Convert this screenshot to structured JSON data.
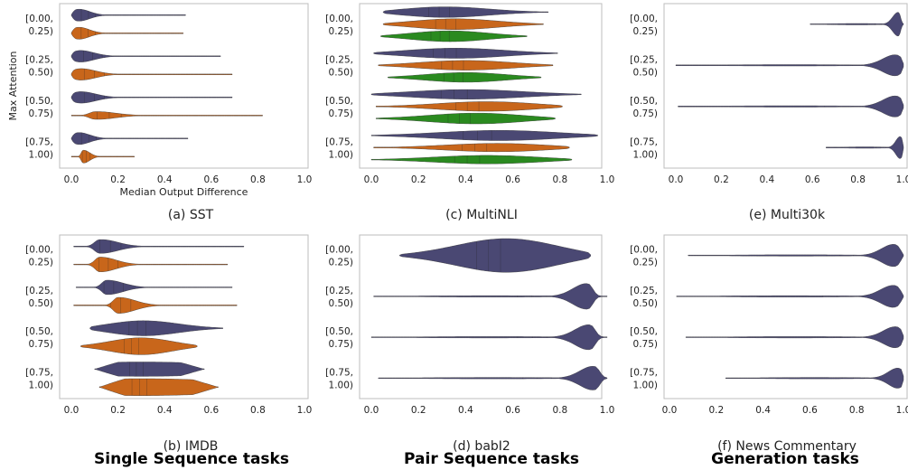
{
  "colors": {
    "series1": "#4a4873",
    "series2": "#c8661b",
    "series3": "#2a8a1f",
    "frame": "#bdbdbd"
  },
  "group_labels": [
    "Single Sequence tasks",
    "Pair Sequence tasks",
    "Generation tasks"
  ],
  "chart_data": [
    {
      "id": "sst",
      "type": "violin",
      "caption": "(a) SST",
      "ylabel": "Max Attention",
      "xlabel": "Median Output Difference",
      "categories": [
        "[0.00,\n0.25)",
        "[0.25,\n0.50)",
        "[0.50,\n0.75)",
        "[0.75,\n1.00)"
      ],
      "xlim": [
        0,
        1
      ],
      "xticks": [
        "0.0",
        "0.2",
        "0.4",
        "0.6",
        "0.8",
        "1.0"
      ],
      "series": [
        {
          "color_key": "series1",
          "violins": [
            {
              "min": 0.0,
              "max": 0.49,
              "peak": 0.02,
              "width": 1.0,
              "skew": "right"
            },
            {
              "min": 0.0,
              "max": 0.64,
              "peak": 0.02,
              "width": 1.0,
              "skew": "right"
            },
            {
              "min": 0.0,
              "max": 0.69,
              "peak": 0.02,
              "width": 1.0,
              "skew": "right"
            },
            {
              "min": 0.0,
              "max": 0.5,
              "peak": 0.02,
              "width": 1.0,
              "skew": "right"
            }
          ]
        },
        {
          "color_key": "series2",
          "violins": [
            {
              "min": 0.0,
              "max": 0.48,
              "peak": 0.02,
              "width": 1.0,
              "skew": "right"
            },
            {
              "min": 0.0,
              "max": 0.69,
              "peak": 0.02,
              "width": 1.0,
              "skew": "right"
            },
            {
              "min": 0.0,
              "max": 0.82,
              "peak": 0.1,
              "width": 0.55,
              "skew": "right"
            },
            {
              "min": 0.0,
              "max": 0.27,
              "peak": 0.05,
              "width": 0.85,
              "skew": "right"
            }
          ]
        }
      ]
    },
    {
      "id": "multinli",
      "type": "violin",
      "caption": "(c) MultiNLI",
      "categories": [
        "[0.00,\n0.25)",
        "[0.25,\n0.50)",
        "[0.50,\n0.75)",
        "[0.75,\n1.00)"
      ],
      "xlim": [
        0,
        1
      ],
      "xticks": [
        "0.0",
        "0.2",
        "0.4",
        "0.6",
        "0.8",
        "1.0"
      ],
      "series": [
        {
          "color_key": "series1",
          "violins": [
            {
              "min": 0.05,
              "max": 0.75,
              "peak": 0.3,
              "width": 0.95,
              "skew": "sym"
            },
            {
              "min": 0.01,
              "max": 0.79,
              "peak": 0.35,
              "width": 0.9,
              "skew": "sym"
            },
            {
              "min": 0.0,
              "max": 0.89,
              "peak": 0.4,
              "width": 0.85,
              "skew": "sym"
            },
            {
              "min": 0.0,
              "max": 0.96,
              "peak": 0.55,
              "width": 0.9,
              "skew": "sym"
            }
          ]
        },
        {
          "color_key": "series2",
          "violins": [
            {
              "min": 0.05,
              "max": 0.73,
              "peak": 0.35,
              "width": 0.95,
              "skew": "sym"
            },
            {
              "min": 0.03,
              "max": 0.77,
              "peak": 0.4,
              "width": 0.85,
              "skew": "sym"
            },
            {
              "min": 0.02,
              "max": 0.81,
              "peak": 0.5,
              "width": 0.85,
              "skew": "sym"
            },
            {
              "min": 0.01,
              "max": 0.84,
              "peak": 0.55,
              "width": 0.75,
              "skew": "sym"
            }
          ]
        },
        {
          "color_key": "series3",
          "violins": [
            {
              "min": 0.04,
              "max": 0.66,
              "peak": 0.33,
              "width": 0.95,
              "skew": "sym"
            },
            {
              "min": 0.07,
              "max": 0.72,
              "peak": 0.4,
              "width": 0.85,
              "skew": "sym"
            },
            {
              "min": 0.02,
              "max": 0.78,
              "peak": 0.45,
              "width": 0.95,
              "skew": "sym"
            },
            {
              "min": 0.0,
              "max": 0.85,
              "peak": 0.5,
              "width": 0.75,
              "skew": "sym"
            }
          ]
        }
      ]
    },
    {
      "id": "multi30k",
      "type": "violin",
      "caption": "(e) Multi30k",
      "categories": [
        "[0.00,\n0.25)",
        "[0.25,\n0.50)",
        "[0.50,\n0.75)",
        "[0.75,\n1.00)"
      ],
      "xlim": [
        0,
        1
      ],
      "xticks": [
        "0.0",
        "0.2",
        "0.4",
        "0.6",
        "0.8",
        "1.0"
      ],
      "series": [
        {
          "color_key": "series1",
          "violins": [
            {
              "min": 0.59,
              "max": 1.0,
              "peak": 0.98,
              "width": 1.0,
              "skew": "left"
            },
            {
              "min": 0.0,
              "max": 1.0,
              "peak": 0.98,
              "width": 1.0,
              "skew": "left"
            },
            {
              "min": 0.01,
              "max": 1.0,
              "peak": 0.98,
              "width": 1.0,
              "skew": "left"
            },
            {
              "min": 0.66,
              "max": 1.0,
              "peak": 0.99,
              "width": 1.0,
              "skew": "left"
            }
          ]
        }
      ]
    },
    {
      "id": "imdb",
      "type": "violin",
      "caption": "(b) IMDB",
      "categories": [
        "[0.00,\n0.25)",
        "[0.25,\n0.50)",
        "[0.50,\n0.75)",
        "[0.75,\n1.00)"
      ],
      "xlim": [
        0,
        1
      ],
      "xticks": [
        "0.0",
        "0.2",
        "0.4",
        "0.6",
        "0.8",
        "1.0"
      ],
      "series": [
        {
          "color_key": "series1",
          "violins": [
            {
              "min": 0.01,
              "max": 0.74,
              "peak": 0.12,
              "width": 0.95,
              "skew": "right"
            },
            {
              "min": 0.02,
              "max": 0.69,
              "peak": 0.15,
              "width": 0.95,
              "skew": "right"
            },
            {
              "min": 0.08,
              "max": 0.65,
              "peak": 0.3,
              "width": 0.9,
              "skew": "sym"
            },
            {
              "min": 0.1,
              "max": 0.57,
              "peak": 0.3,
              "width": 0.85,
              "skew": "flat"
            }
          ]
        },
        {
          "color_key": "series2",
          "violins": [
            {
              "min": 0.01,
              "max": 0.67,
              "peak": 0.12,
              "width": 1.0,
              "skew": "right"
            },
            {
              "min": 0.01,
              "max": 0.71,
              "peak": 0.2,
              "width": 1.0,
              "skew": "right"
            },
            {
              "min": 0.04,
              "max": 0.54,
              "peak": 0.3,
              "width": 1.0,
              "skew": "sym"
            },
            {
              "min": 0.12,
              "max": 0.63,
              "peak": 0.3,
              "width": 1.0,
              "skew": "flat"
            }
          ]
        }
      ]
    },
    {
      "id": "babi2",
      "type": "violin",
      "caption": "(d) babI2",
      "categories": [
        "[0.00,\n0.25)",
        "[0.25,\n0.50)",
        "[0.50,\n0.75)",
        "[0.75,\n1.00)"
      ],
      "xlim": [
        0,
        1
      ],
      "xticks": [
        "0.0",
        "0.2",
        "0.4",
        "0.6",
        "0.8",
        "1.0"
      ],
      "series": [
        {
          "color_key": "series1",
          "violins": [
            {
              "min": 0.12,
              "max": 0.93,
              "peak": 0.58,
              "width": 1.0,
              "skew": "sym"
            },
            {
              "min": 0.01,
              "max": 1.0,
              "peak": 0.92,
              "width": 1.0,
              "skew": "left"
            },
            {
              "min": 0.0,
              "max": 1.0,
              "peak": 0.93,
              "width": 1.0,
              "skew": "left"
            },
            {
              "min": 0.03,
              "max": 1.0,
              "peak": 0.95,
              "width": 1.0,
              "skew": "left"
            }
          ]
        }
      ]
    },
    {
      "id": "newscommentary",
      "type": "violin",
      "caption": "(f) News Commentary",
      "categories": [
        "[0.00,\n0.25)",
        "[0.25,\n0.50)",
        "[0.50,\n0.75)",
        "[0.75,\n1.00)"
      ],
      "xlim": [
        0,
        1
      ],
      "xticks": [
        "0.0",
        "0.2",
        "0.4",
        "0.6",
        "0.8",
        "1.0"
      ],
      "series": [
        {
          "color_key": "series1",
          "violins": [
            {
              "min": 0.08,
              "max": 1.0,
              "peak": 0.97,
              "width": 1.0,
              "skew": "left"
            },
            {
              "min": 0.03,
              "max": 1.0,
              "peak": 0.97,
              "width": 1.0,
              "skew": "left"
            },
            {
              "min": 0.07,
              "max": 1.0,
              "peak": 0.98,
              "width": 1.0,
              "skew": "left"
            },
            {
              "min": 0.24,
              "max": 1.0,
              "peak": 0.99,
              "width": 1.0,
              "skew": "left"
            }
          ]
        }
      ]
    }
  ]
}
